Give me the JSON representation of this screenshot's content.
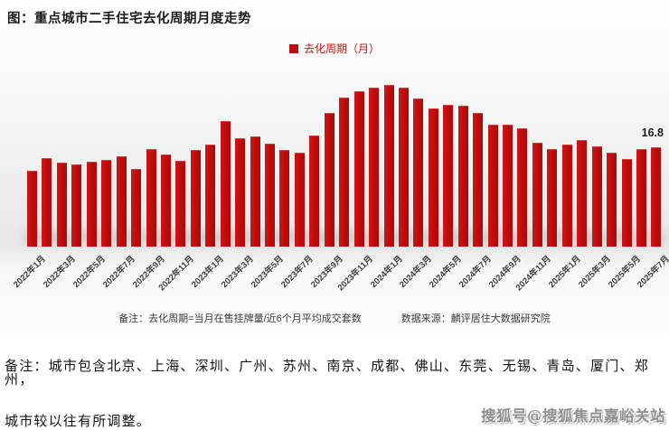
{
  "title": "图：重点城市二手住宅去化周期月度走势",
  "legend": {
    "label": "去化周期（月）",
    "color": "#c01212"
  },
  "chart_data": {
    "type": "bar",
    "title": "重点城市二手住宅去化周期月度走势",
    "ylabel": "去化周期（月）",
    "xlabel": "",
    "ylim": [
      0,
      29
    ],
    "grid": false,
    "legend_position": "top-center",
    "bar_color": "#c00f0f",
    "x_tick_step": 2,
    "last_value_label": "16.8",
    "categories": [
      "2022年1月",
      "2022年2月",
      "2022年3月",
      "2022年4月",
      "2022年5月",
      "2022年6月",
      "2022年7月",
      "2022年8月",
      "2022年9月",
      "2022年10月",
      "2022年11月",
      "2022年12月",
      "2023年1月",
      "2023年2月",
      "2023年3月",
      "2023年4月",
      "2023年5月",
      "2023年6月",
      "2023年7月",
      "2023年8月",
      "2023年9月",
      "2023年10月",
      "2023年11月",
      "2023年12月",
      "2024年1月",
      "2024年2月",
      "2024年3月",
      "2024年4月",
      "2024年5月",
      "2024年6月",
      "2024年7月",
      "2024年8月",
      "2024年9月",
      "2024年10月",
      "2024年11月",
      "2024年12月",
      "2025年1月",
      "2025年2月",
      "2025年3月",
      "2025年4月",
      "2025年5月",
      "2025年6月",
      "2025年7月"
    ],
    "values": [
      12.8,
      14.9,
      14.2,
      13.8,
      14.4,
      14.6,
      15.3,
      13.1,
      16.5,
      15.5,
      14.5,
      16.4,
      17.2,
      21.2,
      18.3,
      18.6,
      17.4,
      16.3,
      15.8,
      18.8,
      22.6,
      25.2,
      26.3,
      27.0,
      27.4,
      26.9,
      25.1,
      23.5,
      24.1,
      23.9,
      22.7,
      20.6,
      20.6,
      20.0,
      17.6,
      16.5,
      17.2,
      18.1,
      16.9,
      15.8,
      14.8,
      16.5,
      16.8
    ]
  },
  "footnote": {
    "note": "备注：去化周期=当月在售挂牌量/近6个月平均成交套数",
    "source": "数据来源：麟评居住大数据研究院"
  },
  "bottom_note": {
    "line1": "备注：城市包含北京、上海、深圳、广州、苏州、南京、成都、佛山、东莞、无锡、青岛、厦门、郑州，",
    "line2": "城市较以往有所调整。"
  },
  "watermark": "搜狐号@搜狐焦点嘉峪关站"
}
